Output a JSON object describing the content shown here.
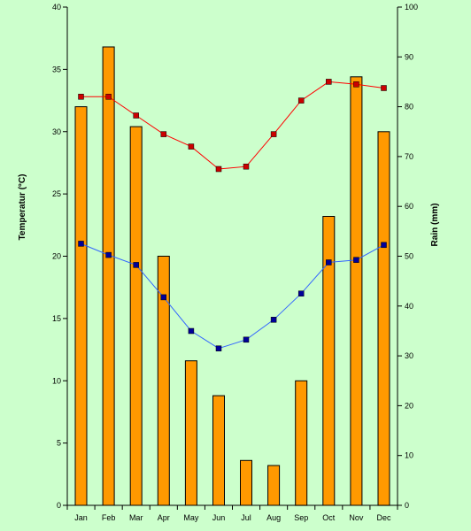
{
  "chart_data": {
    "type": "bar",
    "categories": [
      "Jan",
      "Feb",
      "Mar",
      "Apr",
      "May",
      "Jun",
      "Jul",
      "Aug",
      "Sep",
      "Oct",
      "Nov",
      "Dec"
    ],
    "series": [
      {
        "kind": "bar",
        "axis": "right",
        "values": [
          80,
          92,
          76,
          50,
          29,
          22,
          9,
          8,
          25,
          58,
          86,
          75
        ]
      },
      {
        "kind": "line",
        "axis": "left",
        "values": [
          32.8,
          32.8,
          31.3,
          29.8,
          28.8,
          27.0,
          27.2,
          29.8,
          32.5,
          34.0,
          33.8,
          33.5
        ]
      },
      {
        "kind": "line",
        "axis": "left",
        "values": [
          21.0,
          20.1,
          19.3,
          16.7,
          14.0,
          12.6,
          13.3,
          14.9,
          17.0,
          19.5,
          19.7,
          20.9
        ]
      }
    ],
    "ylabel": "Temperatur (°C)",
    "y2label": "Rain (mm)",
    "ylim": [
      0,
      40
    ],
    "y2lim": [
      0,
      100
    ],
    "yticks": [
      "0",
      "5",
      "10",
      "15",
      "20",
      "25",
      "30",
      "35",
      "40"
    ],
    "y2ticks": [
      "0",
      "10",
      "20",
      "30",
      "40",
      "50",
      "60",
      "70",
      "80",
      "90",
      "100"
    ],
    "grid": false,
    "legend": "none",
    "colors": {
      "background": "#ccffcc",
      "bar_fill": "#ff9900",
      "bar_stroke": "#000000",
      "line_max": "#ff0000",
      "marker_max": "#cc0000",
      "line_min": "#3366ff",
      "marker_min": "#000099",
      "axis": "#000000"
    }
  }
}
